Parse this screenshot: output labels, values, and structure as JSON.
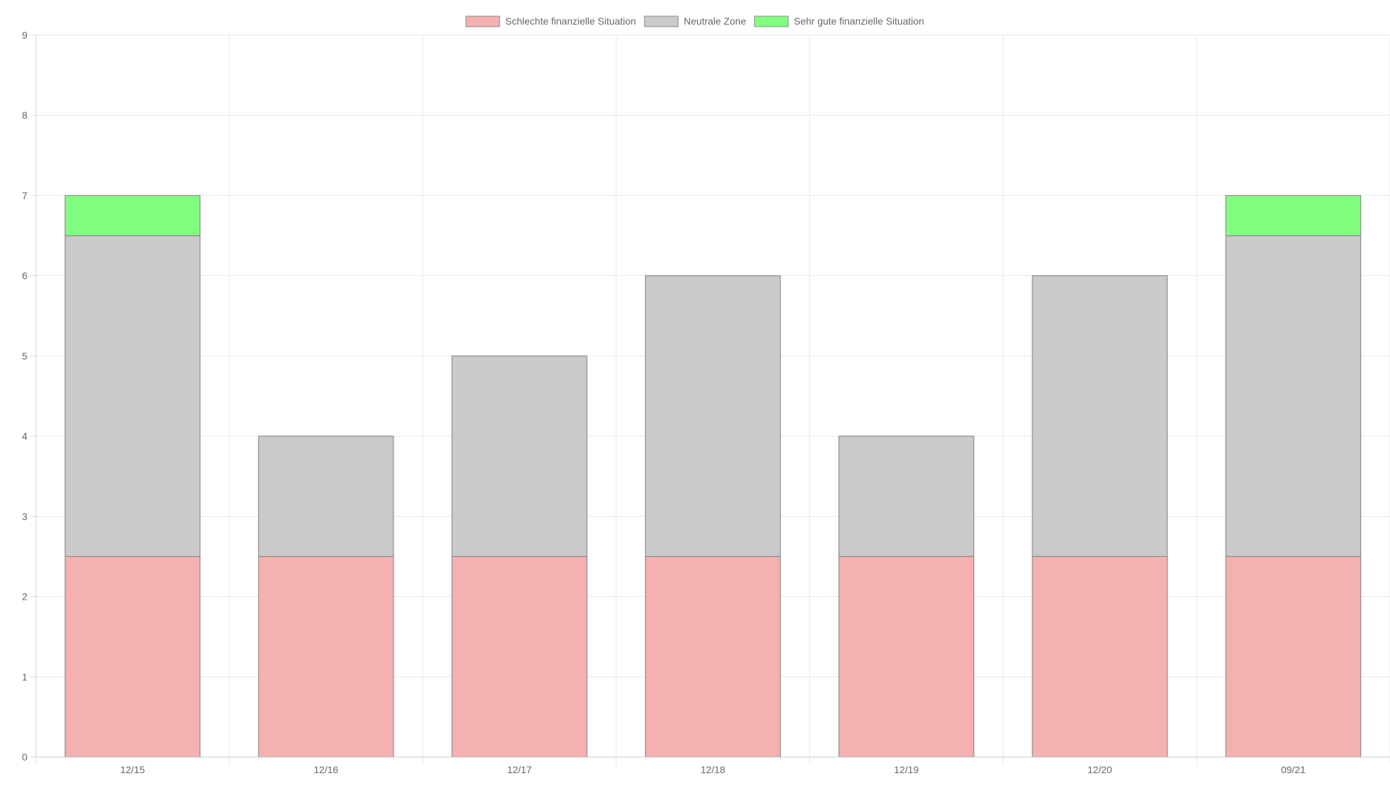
{
  "chart_data": {
    "type": "bar",
    "stacked": true,
    "categories": [
      "12/15",
      "12/16",
      "12/17",
      "12/18",
      "12/19",
      "12/20",
      "09/21"
    ],
    "series": [
      {
        "name": "Schlechte finanzielle Situation",
        "color": "#f5b0b0",
        "values": [
          2.5,
          2.5,
          2.5,
          2.5,
          2.5,
          2.5,
          2.5
        ]
      },
      {
        "name": "Neutrale Zone",
        "color": "#cacaca",
        "values": [
          4.0,
          1.5,
          2.5,
          3.5,
          1.5,
          3.5,
          4.0
        ]
      },
      {
        "name": "Sehr gute finanzielle Situation",
        "color": "#80ff80",
        "values": [
          0.5,
          0,
          0,
          0,
          0,
          0,
          0.5
        ]
      }
    ],
    "ylim": [
      0,
      9
    ],
    "yticks": [
      "0",
      "1",
      "2",
      "3",
      "4",
      "5",
      "6",
      "7",
      "8",
      "9"
    ],
    "grid": true,
    "legend": "top-center",
    "title": "",
    "xlabel": "",
    "ylabel": ""
  }
}
